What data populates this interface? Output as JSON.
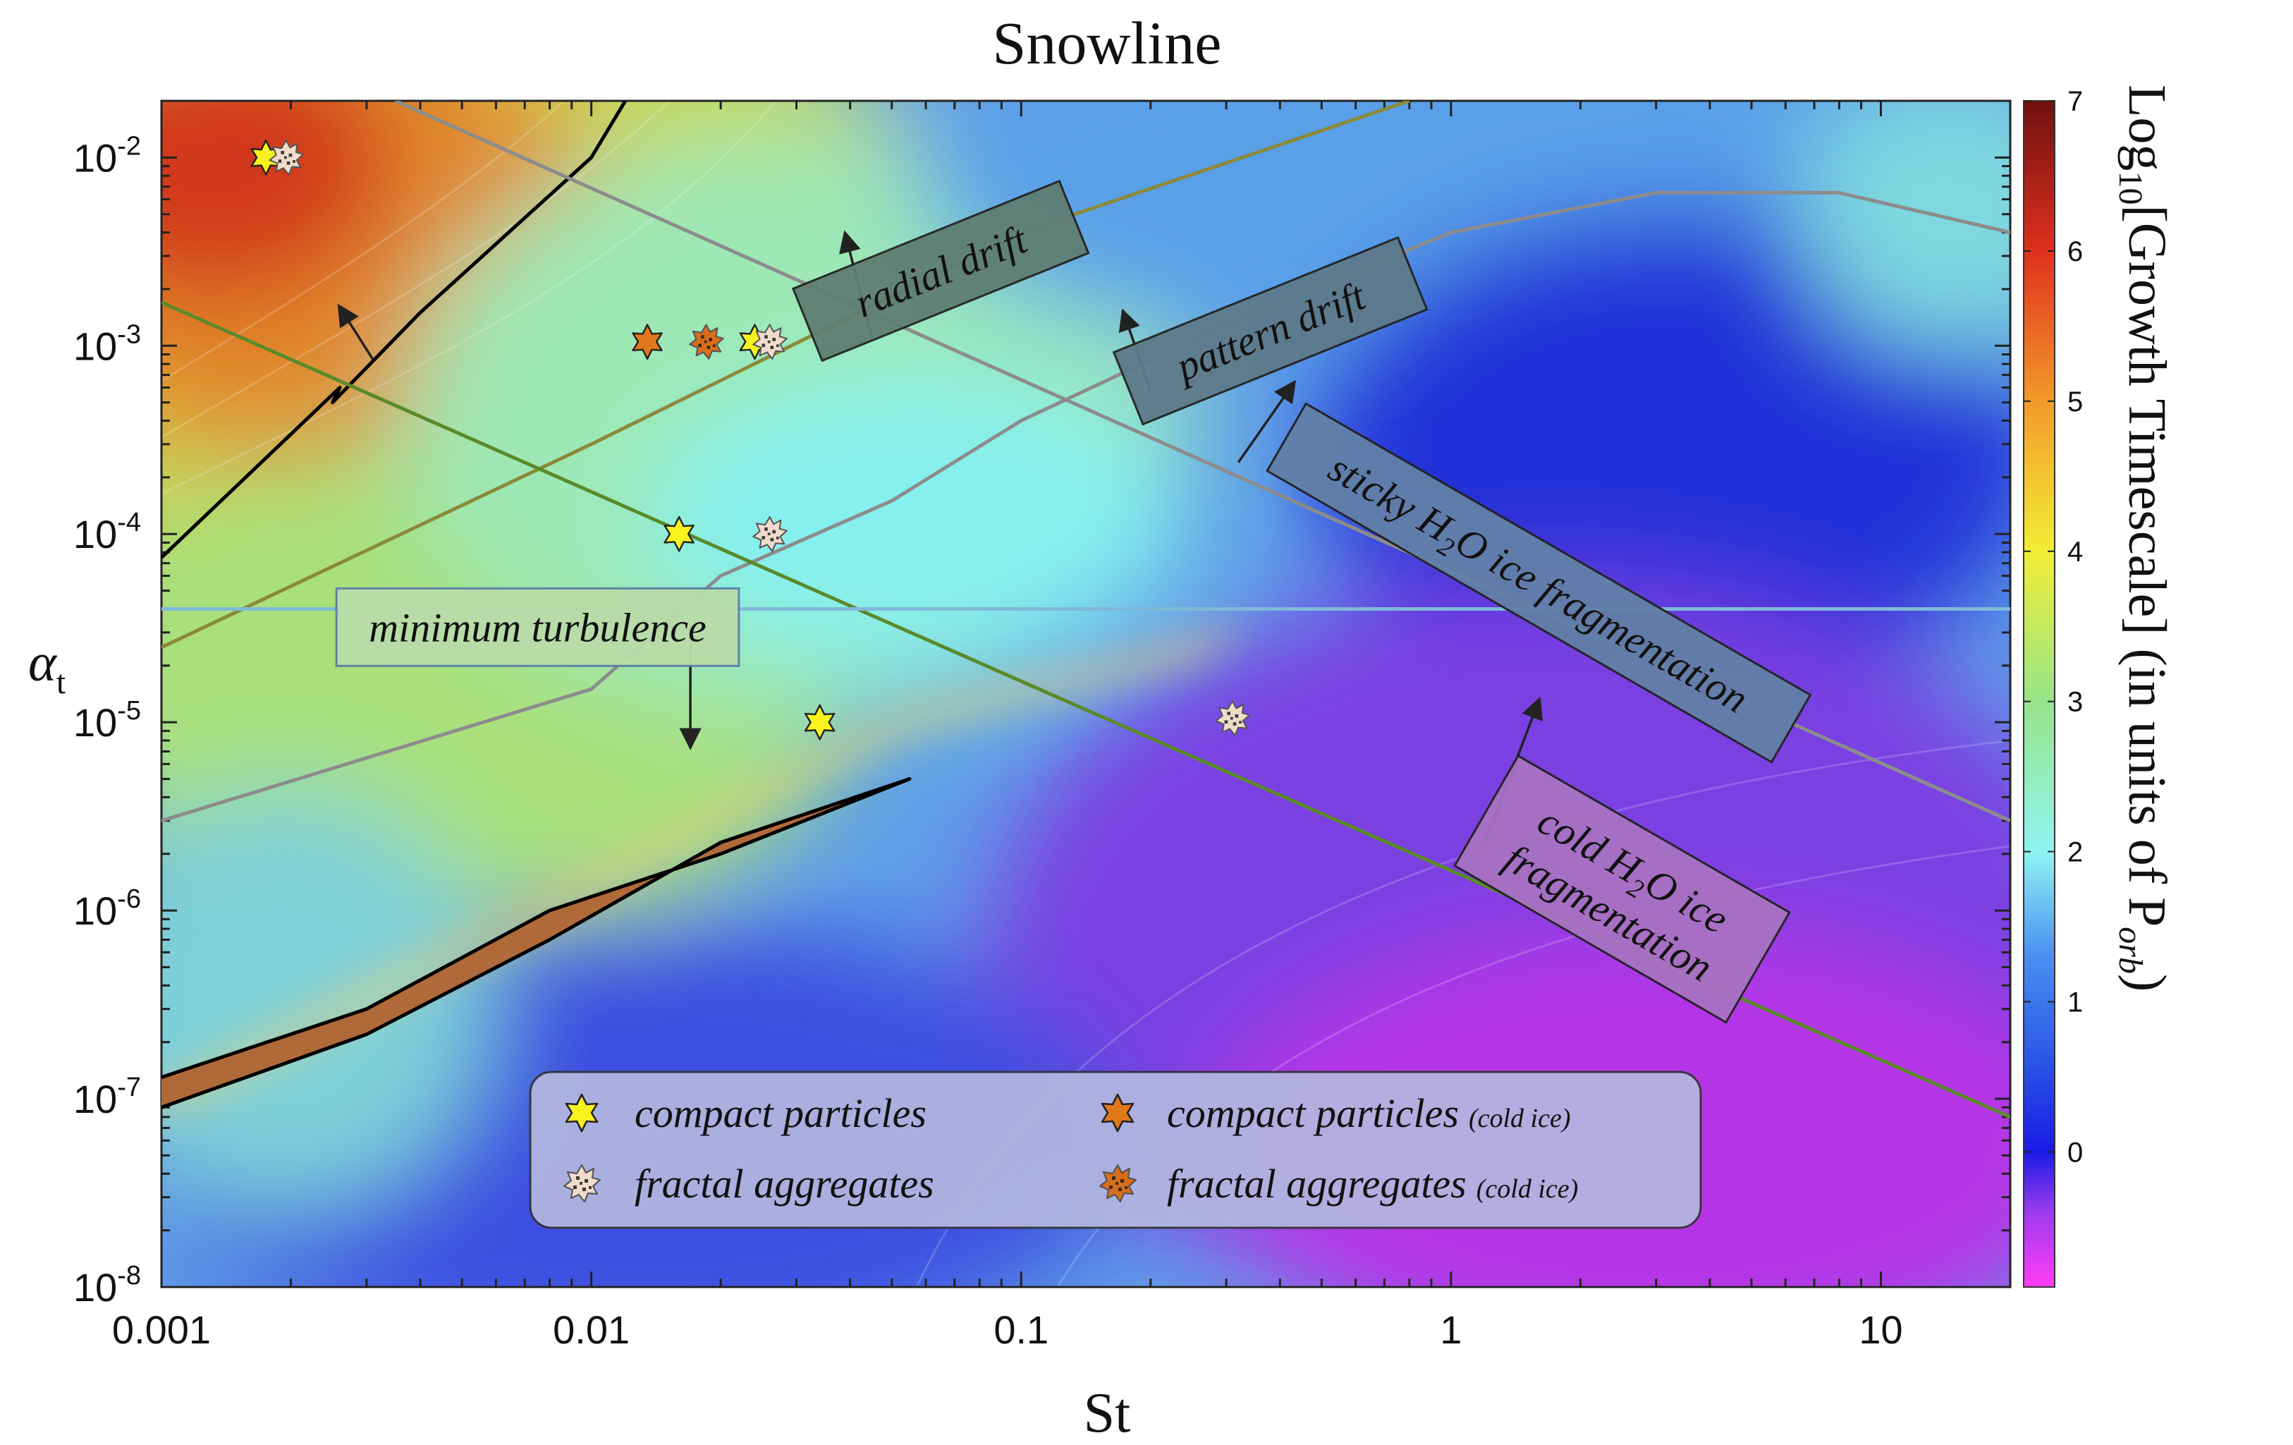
{
  "chart_data": {
    "type": "heatmap",
    "title": "Snowline",
    "xlabel": "St",
    "ylabel_base": "α",
    "ylabel_sub": "t",
    "x_scale": "log",
    "y_scale": "log",
    "xlim": [
      0.001,
      20
    ],
    "ylim": [
      1e-08,
      0.02
    ],
    "x_ticks": [
      {
        "value": 0.001,
        "label": "0.001"
      },
      {
        "value": 0.01,
        "label": "0.01"
      },
      {
        "value": 0.1,
        "label": "0.1"
      },
      {
        "value": 1,
        "label": "1"
      },
      {
        "value": 10,
        "label": "10"
      }
    ],
    "y_ticks": [
      {
        "value": 1e-08,
        "base": "10",
        "exp": "-8"
      },
      {
        "value": 1e-07,
        "base": "10",
        "exp": "-7"
      },
      {
        "value": 1e-06,
        "base": "10",
        "exp": "-6"
      },
      {
        "value": 1e-05,
        "base": "10",
        "exp": "-5"
      },
      {
        "value": 0.0001,
        "base": "10",
        "exp": "-4"
      },
      {
        "value": 0.001,
        "base": "10",
        "exp": "-3"
      },
      {
        "value": 0.01,
        "base": "10",
        "exp": "-2"
      }
    ],
    "colorbar": {
      "min": -0.9,
      "max": 7,
      "ticks": [
        {
          "value": 0,
          "label": "0"
        },
        {
          "value": 1,
          "label": "1"
        },
        {
          "value": 2,
          "label": "2"
        },
        {
          "value": 3,
          "label": "3"
        },
        {
          "value": 4,
          "label": "4"
        },
        {
          "value": 5,
          "label": "5"
        },
        {
          "value": 6,
          "label": "6"
        },
        {
          "value": 7,
          "label": "7"
        }
      ],
      "label_log": "Log",
      "label_sub": "10",
      "label_main": "[Growth Timescale] (in units of P",
      "label_orb": "orb",
      "label_close": ")",
      "stops": [
        {
          "v": -0.9,
          "c": "#ff3cf5"
        },
        {
          "v": -0.4,
          "c": "#9c3cf0"
        },
        {
          "v": 0.0,
          "c": "#1a1ae6"
        },
        {
          "v": 0.6,
          "c": "#2a55e6"
        },
        {
          "v": 1.3,
          "c": "#4a8ef0"
        },
        {
          "v": 2.0,
          "c": "#8ff4f2"
        },
        {
          "v": 3.0,
          "c": "#98e48a"
        },
        {
          "v": 4.0,
          "c": "#f2ee35"
        },
        {
          "v": 5.0,
          "c": "#f29a2a"
        },
        {
          "v": 6.0,
          "c": "#e0301e"
        },
        {
          "v": 7.0,
          "c": "#6e1010"
        }
      ]
    },
    "lines": [
      {
        "name": "radial-drift-line",
        "color": "#8c8c8c",
        "points": [
          [
            0.0035,
            0.02
          ],
          [
            20,
            3e-06
          ]
        ]
      },
      {
        "name": "pattern-drift-line",
        "color": "#8a8a3a",
        "points": [
          [
            0.001,
            2.5e-05
          ],
          [
            0.01,
            0.0003
          ],
          [
            0.1,
            0.004
          ],
          [
            0.8,
            0.02
          ]
        ]
      },
      {
        "name": "sticky-ice-fragmentation-line",
        "color": "#8c8c8c",
        "points": [
          [
            0.001,
            3e-06
          ],
          [
            0.01,
            1.5e-05
          ],
          [
            0.02,
            6e-05
          ],
          [
            0.05,
            0.00015
          ],
          [
            0.1,
            0.0004
          ],
          [
            0.3,
            0.0013
          ],
          [
            1,
            0.004
          ],
          [
            3,
            0.0065
          ],
          [
            8,
            0.0065
          ],
          [
            20,
            0.004
          ]
        ]
      },
      {
        "name": "cold-ice-fragmentation-line",
        "color": "#5a8a2a",
        "points": [
          [
            0.001,
            0.0017
          ],
          [
            20,
            8e-08
          ]
        ]
      },
      {
        "name": "minimum-turbulence-line",
        "color": "#7fb9d8",
        "points": [
          [
            0.001,
            4e-05
          ],
          [
            20,
            4e-05
          ]
        ]
      }
    ],
    "boundaries": [
      {
        "name": "growth-boundary-upper",
        "color": "#000000",
        "points": [
          [
            0.001,
            7.5e-05
          ],
          [
            0.0026,
            0.0006
          ],
          [
            0.0025,
            0.0005
          ],
          [
            0.004,
            0.0015
          ],
          [
            0.01,
            0.01
          ],
          [
            0.012,
            0.02
          ]
        ]
      },
      {
        "name": "growth-boundary-lower",
        "color": "#000000",
        "points": [
          [
            0.001,
            1.3e-07
          ],
          [
            0.003,
            3e-07
          ],
          [
            0.008,
            1e-06
          ],
          [
            0.02,
            2e-06
          ],
          [
            0.055,
            5e-06
          ],
          [
            0.02,
            2.3e-06
          ],
          [
            0.008,
            7e-07
          ],
          [
            0.003,
            2.2e-07
          ],
          [
            0.001,
            9e-08
          ]
        ]
      }
    ],
    "labels": [
      {
        "key": "radial-drift",
        "text": "radial drift",
        "x": 0.065,
        "y": 0.0025,
        "angle": -22,
        "fill": "#5f7e72"
      },
      {
        "key": "pattern-drift",
        "text": "pattern drift",
        "x": 0.38,
        "y": 0.0012,
        "angle": -22,
        "fill": "#5e7a8a"
      },
      {
        "key": "sticky-frag",
        "text_a": "sticky H",
        "sub": "2",
        "text_b": "O ice fragmentation",
        "x": 1.6,
        "y": 5.5e-05,
        "angle": 30,
        "fill": "#6280a8"
      },
      {
        "key": "cold-frag",
        "line1_a": "cold H",
        "sub": "2",
        "line1_b": "O ice",
        "line2": "fragmentation",
        "x": 2.5,
        "y": 1.3e-06,
        "angle": 30,
        "fill": "#a872c2"
      },
      {
        "key": "min-turb",
        "text": "minimum turbulence",
        "x": 0.0075,
        "y": 3.2e-05,
        "angle": 0,
        "fill": "#b9dca8"
      }
    ],
    "arrows": [
      {
        "from": [
          0.0031,
          0.00085
        ],
        "to": [
          0.0026,
          0.0016
        ]
      },
      {
        "from": [
          0.045,
          0.0011
        ],
        "to": [
          0.039,
          0.0039
        ]
      },
      {
        "from": [
          0.2,
          0.00058
        ],
        "to": [
          0.173,
          0.0015
        ]
      },
      {
        "from": [
          0.32,
          0.00024
        ],
        "to": [
          0.43,
          0.00063
        ]
      },
      {
        "from": [
          0.017,
          3.1e-05
        ],
        "to": [
          0.017,
          7.5e-06
        ]
      },
      {
        "from": [
          1.2,
          2.3e-06
        ],
        "to": [
          1.6,
          1.3e-05
        ]
      }
    ],
    "markers": [
      {
        "kind": "compact",
        "x": 0.00175,
        "y": 0.01
      },
      {
        "kind": "fractal",
        "x": 0.00195,
        "y": 0.01
      },
      {
        "kind": "compact-cold",
        "x": 0.0135,
        "y": 0.00105
      },
      {
        "kind": "fractal-cold",
        "x": 0.0185,
        "y": 0.00105
      },
      {
        "kind": "compact",
        "x": 0.024,
        "y": 0.00105
      },
      {
        "kind": "fractal",
        "x": 0.026,
        "y": 0.00105
      },
      {
        "kind": "compact",
        "x": 0.016,
        "y": 0.0001
      },
      {
        "kind": "fractal",
        "x": 0.026,
        "y": 0.0001
      },
      {
        "kind": "compact",
        "x": 0.034,
        "y": 1e-05
      },
      {
        "kind": "fractal",
        "x": 0.31,
        "y": 1.05e-05
      }
    ],
    "legend": {
      "location": "lower-center",
      "items": [
        {
          "kind": "compact",
          "text": "compact particles",
          "note": ""
        },
        {
          "kind": "fractal",
          "text": "fractal aggregates",
          "note": ""
        },
        {
          "kind": "compact-cold",
          "text": "compact particles",
          "note": "(cold ice)"
        },
        {
          "kind": "fractal-cold",
          "text": "fractal aggregates",
          "note": "(cold ice)"
        }
      ]
    }
  }
}
